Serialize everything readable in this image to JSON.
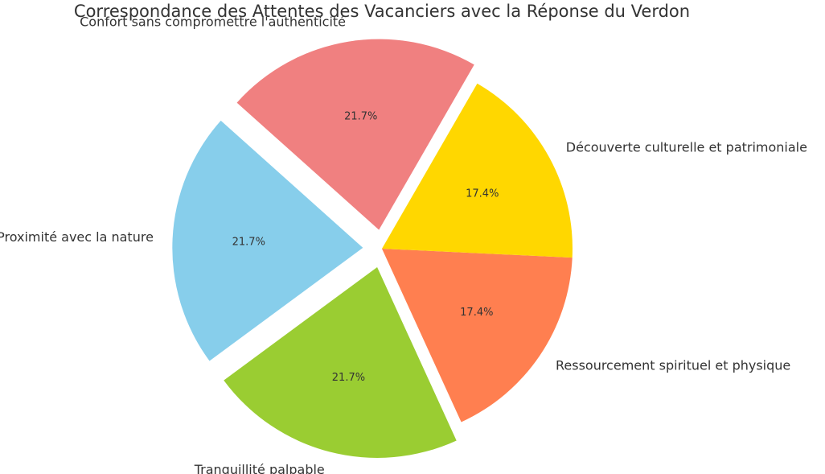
{
  "chart_data": {
    "type": "pie",
    "title": "Correspondance des Attentes des Vacanciers avec la Réponse du Verdon",
    "slices": [
      {
        "label": "Confort sans compromettre l'authenticité",
        "value": 21.7,
        "pct_label": "21.7%",
        "color": "#F08080",
        "exploded": true
      },
      {
        "label": "Proximité avec la nature",
        "value": 21.7,
        "pct_label": "21.7%",
        "color": "#87CEEB",
        "exploded": true
      },
      {
        "label": "Tranquillité palpable",
        "value": 21.7,
        "pct_label": "21.7%",
        "color": "#9ACD32",
        "exploded": true
      },
      {
        "label": "Ressourcement spirituel et physique",
        "value": 17.4,
        "pct_label": "17.4%",
        "color": "#FF7F50",
        "exploded": false
      },
      {
        "label": "Découverte culturelle et patrimoniale",
        "value": 17.4,
        "pct_label": "17.4%",
        "color": "#FFD700",
        "exploded": false
      }
    ],
    "start_angle_deg": 60,
    "direction": "counterclockwise",
    "legend": "none"
  }
}
